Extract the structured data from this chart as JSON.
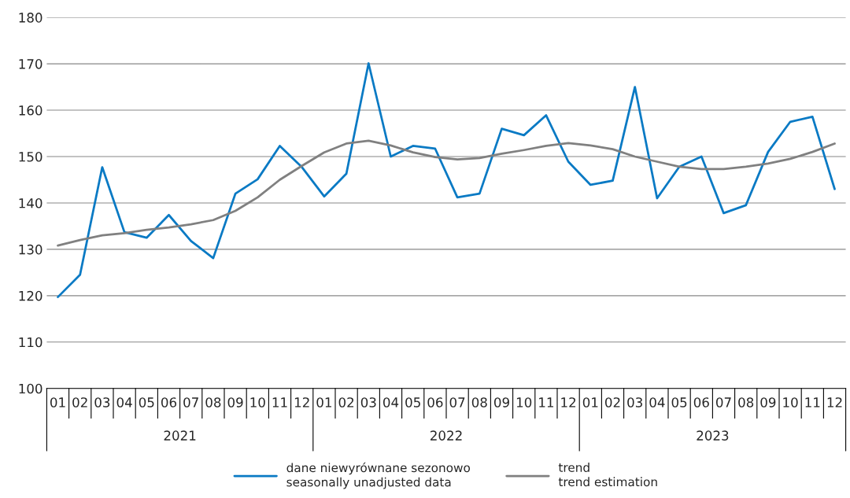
{
  "chart_data": {
    "type": "line",
    "categories": [
      "01",
      "02",
      "03",
      "04",
      "05",
      "06",
      "07",
      "08",
      "09",
      "10",
      "11",
      "12",
      "01",
      "02",
      "03",
      "04",
      "05",
      "06",
      "07",
      "08",
      "09",
      "10",
      "11",
      "12",
      "01",
      "02",
      "03",
      "04",
      "05",
      "06",
      "07",
      "08",
      "09",
      "10",
      "11",
      "12"
    ],
    "series": [
      {
        "name": "dane niewyrównane sezonowo\nseasonally unadjusted data",
        "color": "#0a7ac4",
        "values": [
          119.7,
          124.5,
          147.7,
          133.7,
          132.5,
          137.4,
          131.8,
          128.1,
          142,
          145.1,
          152.3,
          147.7,
          141.4,
          146.3,
          170.1,
          150,
          152.3,
          151.7,
          141.2,
          142,
          156,
          154.6,
          158.9,
          148.9,
          143.9,
          144.8,
          165,
          141,
          147.8,
          150,
          137.8,
          139.5,
          151,
          157.5,
          158.6,
          143
        ]
      },
      {
        "name": "trend\ntrend estimation",
        "color": "#808080",
        "values": [
          130.8,
          132,
          133,
          133.5,
          134.2,
          134.7,
          135.4,
          136.3,
          138.3,
          141.2,
          145,
          148,
          150.9,
          152.8,
          153.4,
          152.4,
          150.9,
          149.9,
          149.4,
          149.7,
          150.6,
          151.4,
          152.3,
          152.9,
          152.4,
          151.6,
          150,
          148.9,
          147.8,
          147.3,
          147.3,
          147.8,
          148.5,
          149.5,
          151,
          152.8
        ]
      }
    ],
    "annotations": [
      "2021",
      "2022",
      "2023"
    ],
    "ylim": [
      100,
      180
    ],
    "yticks": [
      100,
      110,
      120,
      130,
      140,
      150,
      160,
      170,
      180
    ],
    "grid": "y",
    "legend": "bottom",
    "marker": "none",
    "line_style": "solid"
  }
}
